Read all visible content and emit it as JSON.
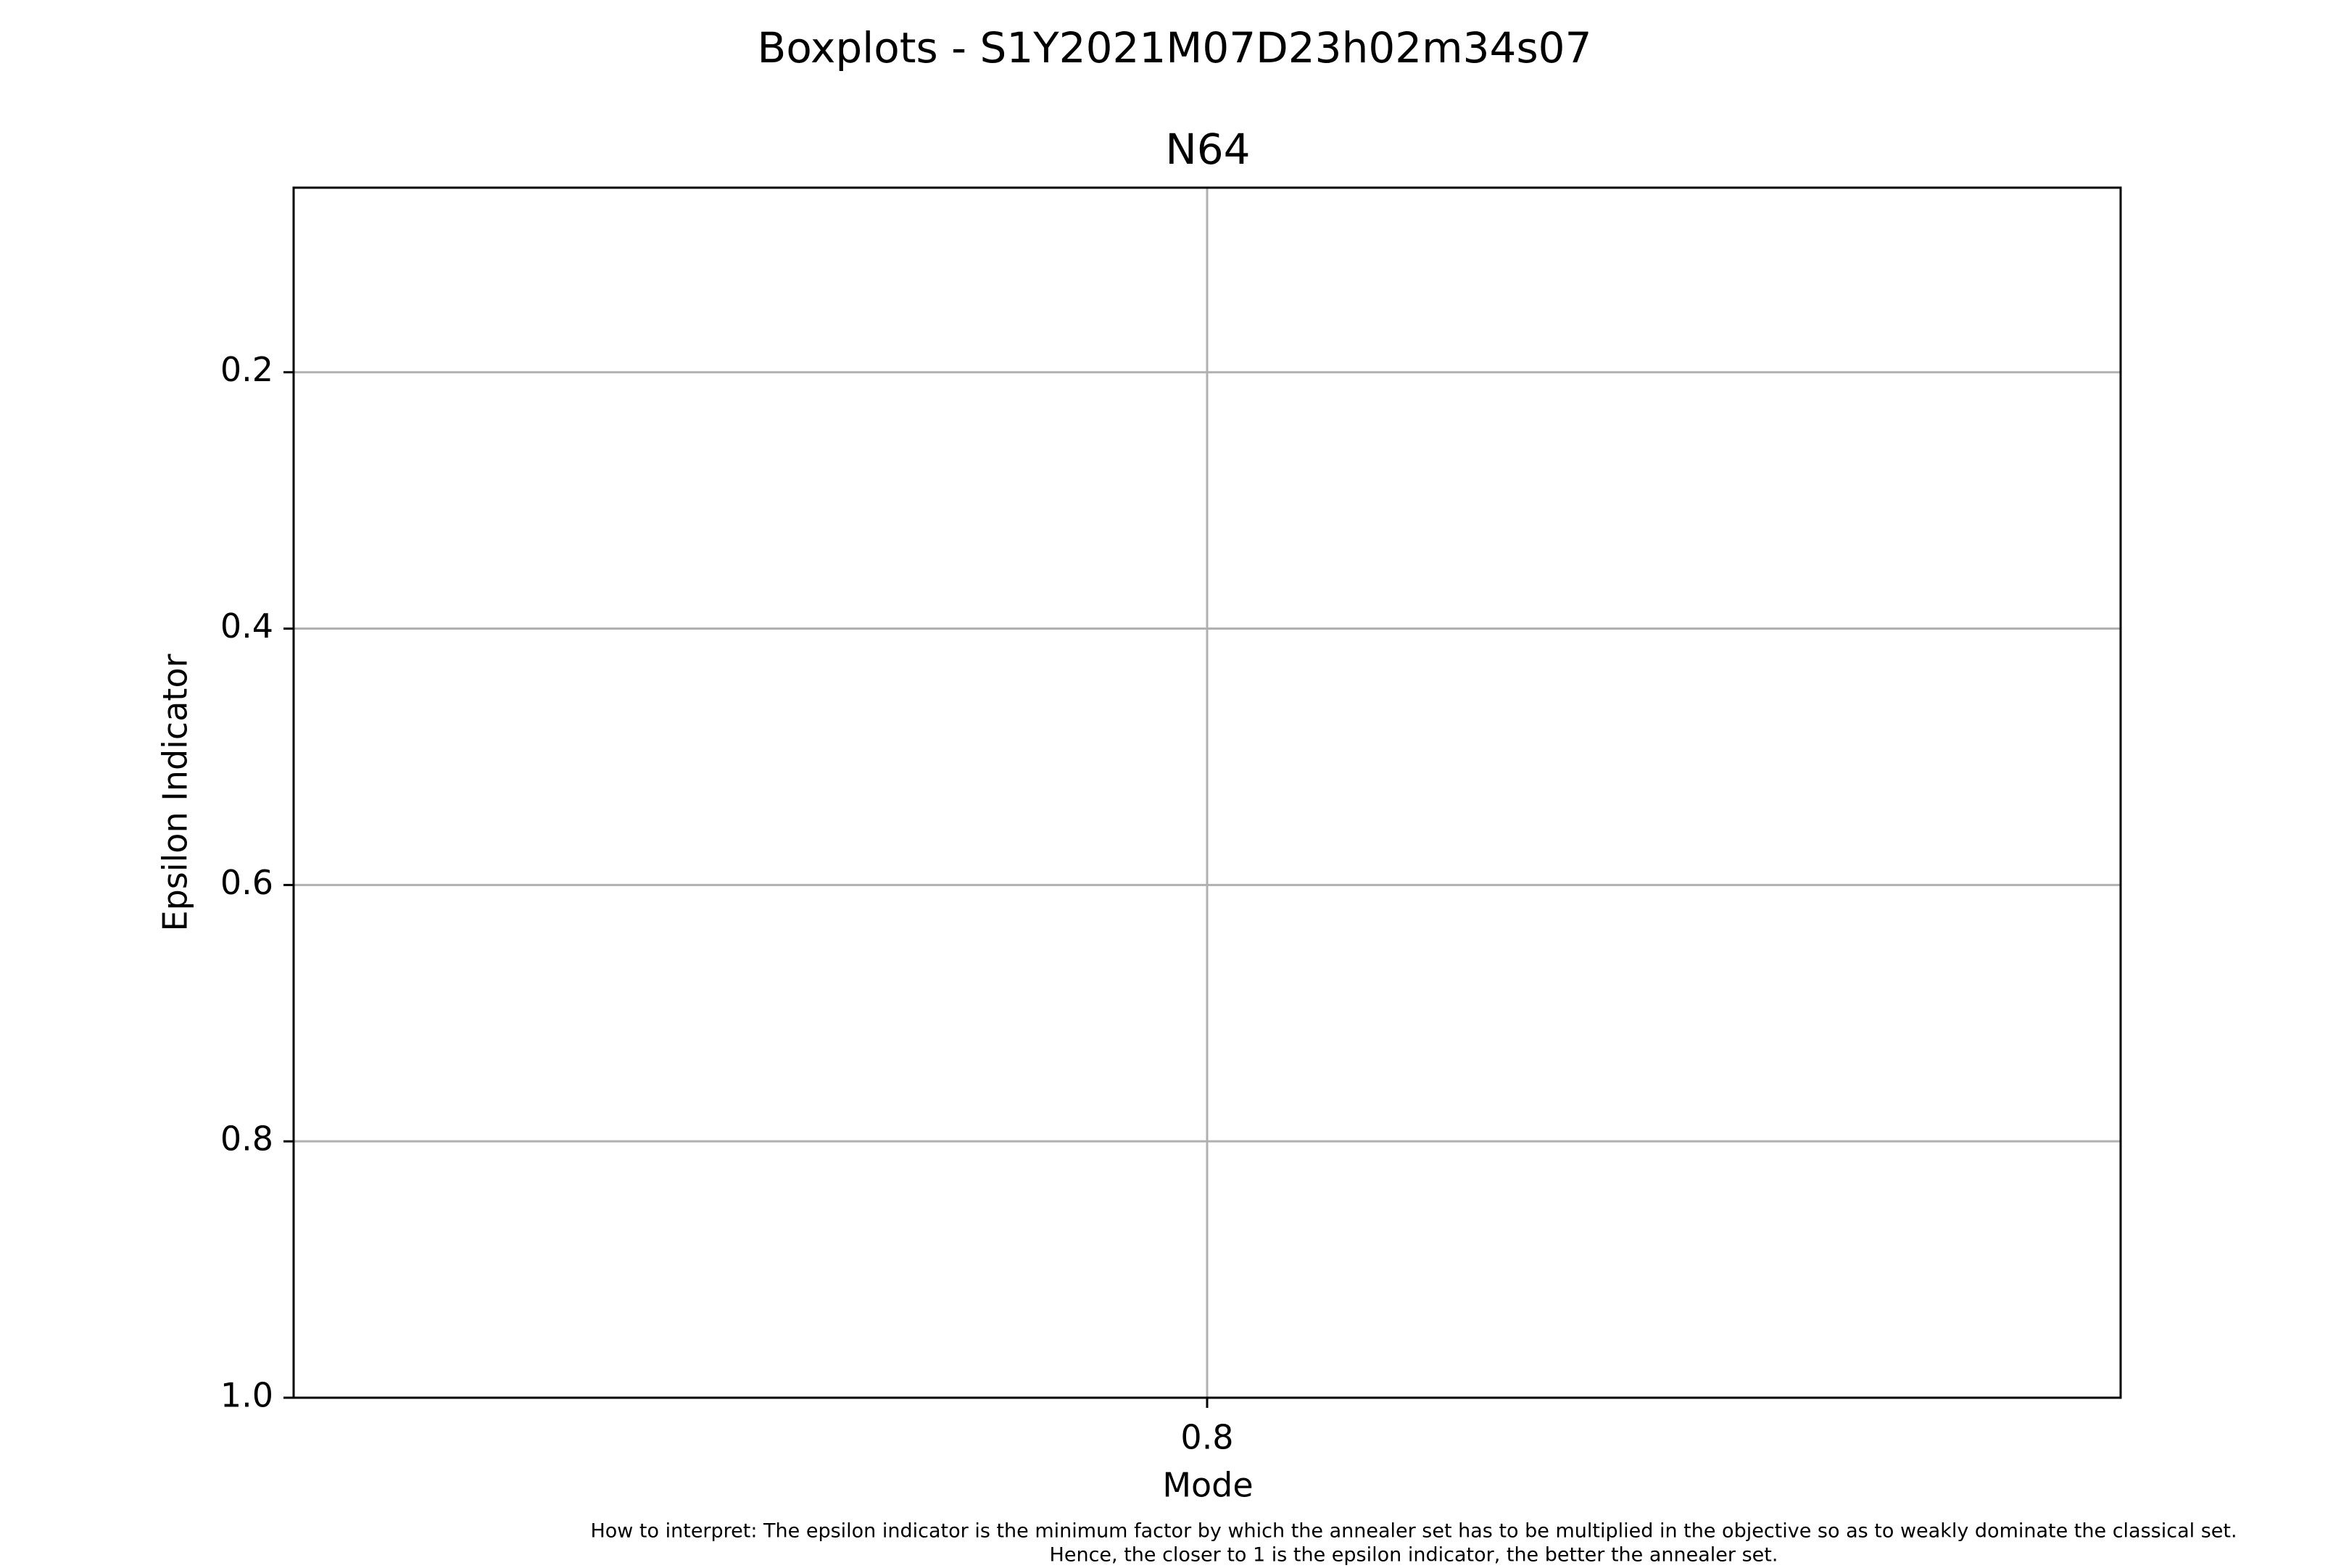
{
  "figure": {
    "suptitle": "Boxplots - S1Y2021M07D23h02m34s07",
    "footnote_line1": "How to interpret: The epsilon indicator is the minimum factor by which the annealer set has to be multiplied in the objective so as to weakly dominate the classical set.",
    "footnote_line2": "Hence, the closer to 1 is the epsilon indicator, the better the annealer set."
  },
  "chart_data": {
    "type": "box",
    "title": "N64",
    "xlabel": "Mode",
    "ylabel": "Epsilon Indicator",
    "x_ticks": [
      "0.8"
    ],
    "y_ticks": [
      "0.2",
      "0.4",
      "0.6",
      "0.8",
      "1.0"
    ],
    "ylim": [
      0.056,
      1.0
    ],
    "y_inverted": true,
    "grid": true,
    "series": []
  },
  "colors": {
    "grid": "#b0b0b0",
    "axes": "#000000",
    "background": "#ffffff"
  }
}
